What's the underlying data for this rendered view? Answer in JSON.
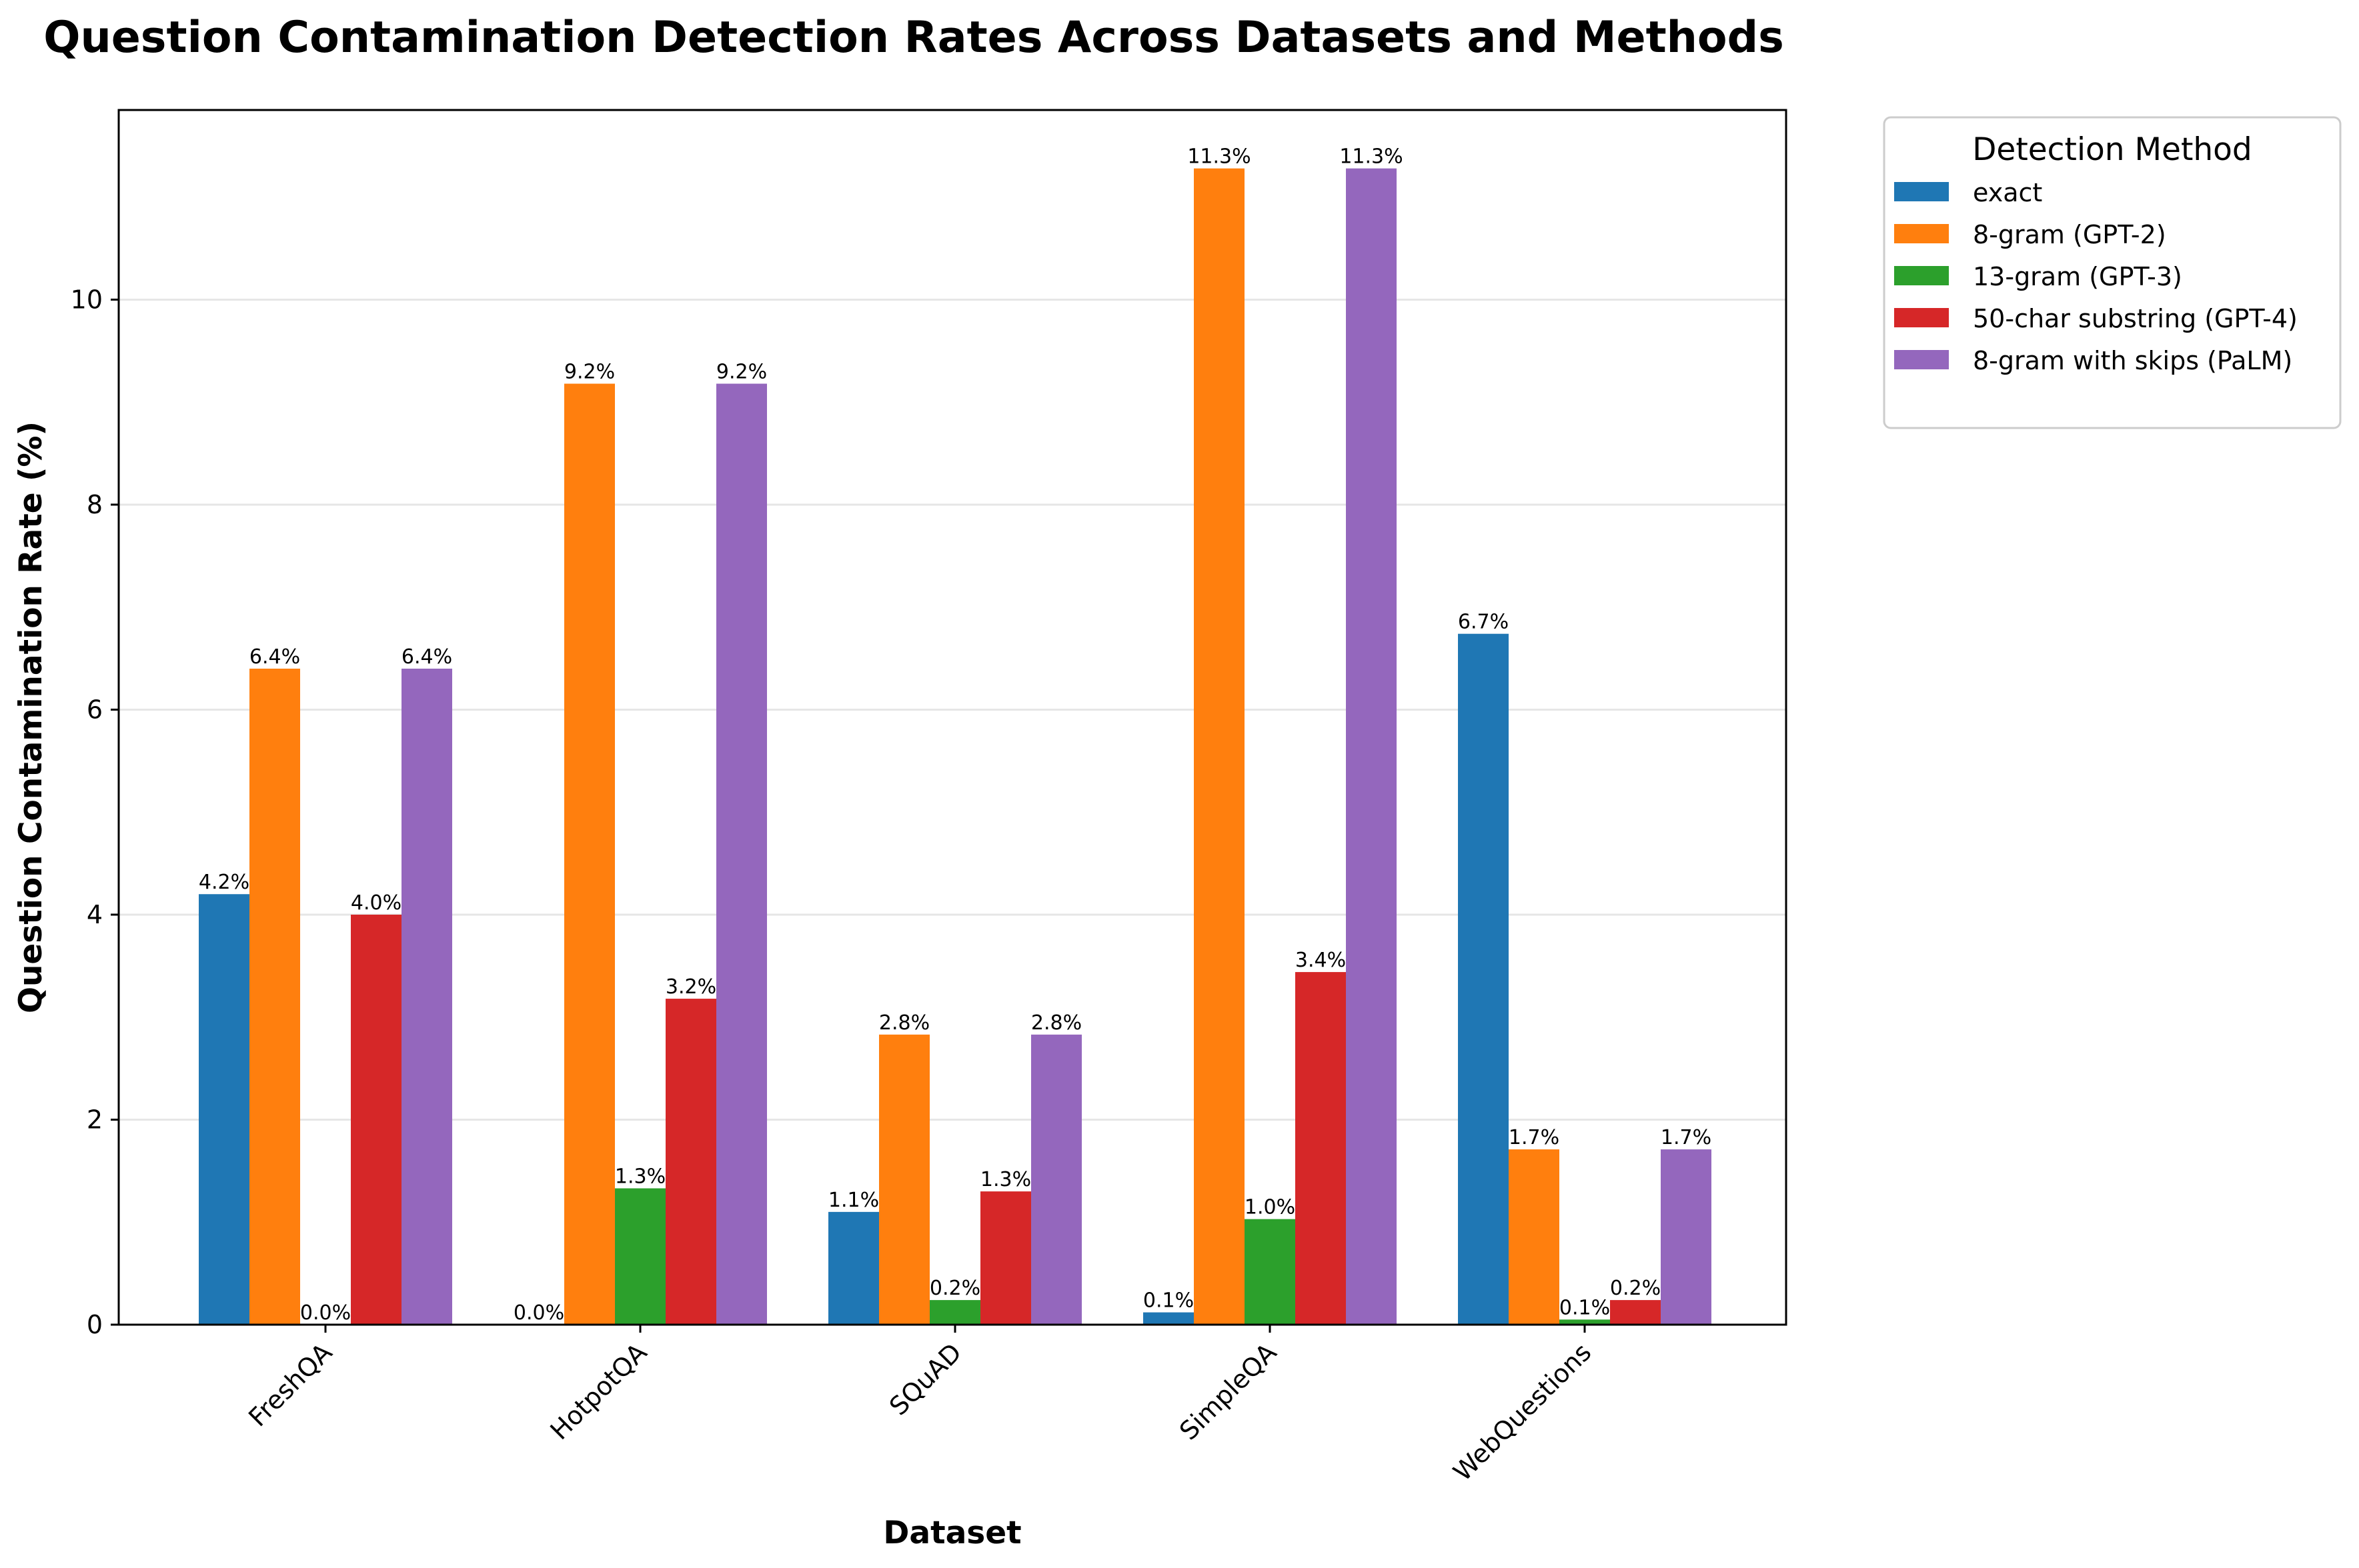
{
  "chart_data": {
    "type": "bar",
    "title": "Question Contamination Detection Rates Across Datasets and Methods",
    "xlabel": "Dataset",
    "ylabel": "Question Contamination Rate (%)",
    "categories": [
      "FreshQA",
      "HotpotQA",
      "SQuAD",
      "SimpleQA",
      "WebQuestions"
    ],
    "yticks": [
      "0",
      "2",
      "4",
      "6",
      "8",
      "10"
    ],
    "ylim": [
      0,
      11.85
    ],
    "grid": "horizontal",
    "legend": {
      "title": "Detection Method",
      "placement": "outside-top-right"
    },
    "series": [
      {
        "name": "exact",
        "color": "#1f77b4",
        "values": [
          4.2,
          0.0,
          1.1,
          0.12,
          6.74
        ],
        "labels": [
          "4.2%",
          "0.0%",
          "1.1%",
          "0.1%",
          "6.7%"
        ]
      },
      {
        "name": "8-gram (GPT-2)",
        "color": "#ff7f0e",
        "values": [
          6.4,
          9.18,
          2.83,
          11.28,
          1.71
        ],
        "labels": [
          "6.4%",
          "9.2%",
          "2.8%",
          "11.3%",
          "1.7%"
        ]
      },
      {
        "name": "13-gram (GPT-3)",
        "color": "#2ca02c",
        "values": [
          0.0,
          1.33,
          0.24,
          1.03,
          0.05
        ],
        "labels": [
          "0.0%",
          "1.3%",
          "0.2%",
          "1.0%",
          "0.1%"
        ]
      },
      {
        "name": "50-char substring (GPT-4)",
        "color": "#d62728",
        "values": [
          4.0,
          3.18,
          1.3,
          3.44,
          0.24
        ],
        "labels": [
          "4.0%",
          "3.2%",
          "1.3%",
          "3.4%",
          "0.2%"
        ]
      },
      {
        "name": "8-gram with skips (PaLM)",
        "color": "#9467bd",
        "values": [
          6.4,
          9.18,
          2.83,
          11.28,
          1.71
        ],
        "labels": [
          "6.4%",
          "9.2%",
          "2.8%",
          "11.3%",
          "1.7%"
        ]
      }
    ]
  }
}
